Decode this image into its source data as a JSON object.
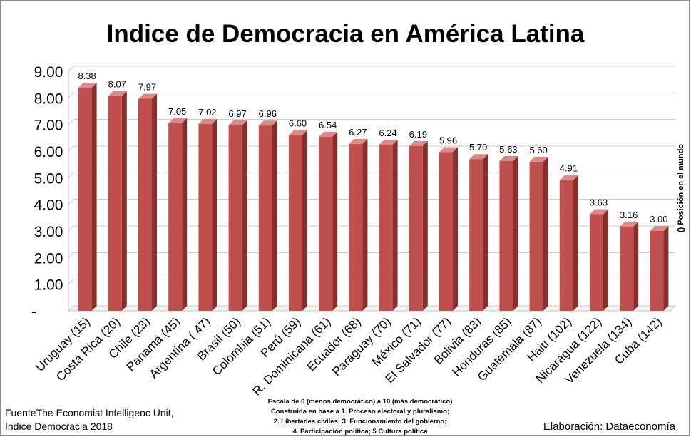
{
  "chart_data": {
    "type": "bar",
    "title": "Indice de Democracia en América Latina",
    "categories": [
      "Uruguay (15)",
      "Costa Rica (20)",
      "Chile (23)",
      "Panamá (45)",
      "Argentina ( 47)",
      "Brasil (50)",
      "Colombia (51)",
      "Perú (59)",
      "R. Dominicana (61)",
      "Ecuador (68)",
      "Paraguay (70)",
      "México (71)",
      "El Salvador (77)",
      "Bolivia (83)",
      "Honduras (85)",
      "Guatemala (87)",
      "Haití (102)",
      "Nicaragua (122)",
      "Venezuela (134)",
      "Cuba (142)"
    ],
    "values": [
      8.38,
      8.07,
      7.97,
      7.05,
      7.02,
      6.97,
      6.96,
      6.6,
      6.54,
      6.27,
      6.24,
      6.19,
      5.96,
      5.7,
      5.63,
      5.6,
      4.91,
      3.63,
      3.16,
      3.0
    ],
    "value_labels": [
      "8.38",
      "8.07",
      "7.97",
      "7.05",
      "7.02",
      "6.97",
      "6.96",
      "6.60",
      "6.54",
      "6.27",
      "6.24",
      "6.19",
      "5.96",
      "5.70",
      "5.63",
      "5.60",
      "4.91",
      "3.63",
      "3.16",
      "3.00"
    ],
    "ylim": [
      0,
      9
    ],
    "yticks": [
      {
        "value": 0,
        "label": "-"
      },
      {
        "value": 1,
        "label": "1.00"
      },
      {
        "value": 2,
        "label": "2.00"
      },
      {
        "value": 3,
        "label": "3.00"
      },
      {
        "value": 4,
        "label": "4.00"
      },
      {
        "value": 5,
        "label": "5.00"
      },
      {
        "value": 6,
        "label": "6.00"
      },
      {
        "value": 7,
        "label": "7.00"
      },
      {
        "value": 8,
        "label": "8.00"
      },
      {
        "value": 9,
        "label": "9.00"
      }
    ],
    "grid": true,
    "colors": {
      "bar_front": "#c0504d",
      "bar_side": "#8b2e2b",
      "bar_top": "#d98b89",
      "grid": "#c8c8c8"
    }
  },
  "side_note": "() Posición en el mundo",
  "source_line1": "FuenteThe Economist Intelligenc Unit,",
  "source_line2": "Indice Democracia 2018",
  "elaboration": "Elaboración: Dataeconomía",
  "scale_notes": [
    "Escala de 0 (menos democrático) a 10 (más democrático)",
    "Construida en base a 1. Proceso electoral y pluralismo;",
    "2. Libertades civiles; 3. Funcionamiento del gobierno;",
    "4. Participación política; 5 Cultura política"
  ]
}
